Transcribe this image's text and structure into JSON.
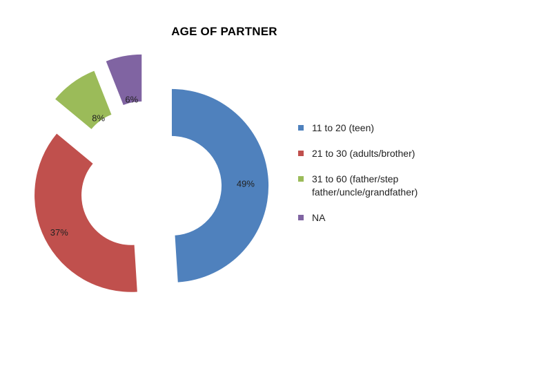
{
  "chart_data": {
    "type": "pie",
    "variant": "exploded-donut",
    "title": "AGE OF PARTNER",
    "legend_position": "right",
    "slices": [
      {
        "name": "11 to 20 (teen)",
        "value": 49,
        "label": "49%",
        "color": "#4F81BD"
      },
      {
        "name": "21 to 30 (adults/brother)",
        "value": 37,
        "label": "37%",
        "color": "#C0504D"
      },
      {
        "name": "31 to 60 (father/step father/uncle/grandfather)",
        "value": 8,
        "label": "8%",
        "color": "#9BBB59"
      },
      {
        "name": "NA",
        "value": 6,
        "label": "6%",
        "color": "#8064A2"
      }
    ]
  }
}
